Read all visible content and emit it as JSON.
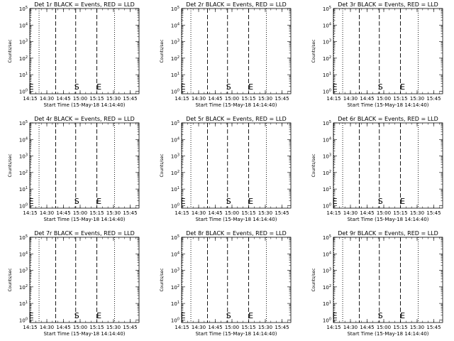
{
  "chart_data": [
    {
      "type": "line",
      "title": "Det 1r BLACK = Events, RED = LLD",
      "xlabel": "Start Time (15-May-18 14:14:40)",
      "ylabel": "Counts/sec",
      "xticks": [
        "14:15",
        "14:30",
        "14:45",
        "15:00",
        "15:15",
        "15:30",
        "15:45"
      ],
      "yticks": [
        "10^0",
        "10^1",
        "10^2",
        "10^3",
        "10^4",
        "10^5"
      ],
      "yscale": "log",
      "ylim": [
        0.7,
        100000
      ],
      "xlim": [
        "14:14:40",
        "15:53:00"
      ],
      "vlines_dotted": [
        "14:15",
        "14:23",
        "15:31"
      ],
      "vlines_dashed": [
        "14:38",
        "14:56",
        "15:15"
      ],
      "markers": [
        {
          "label": "E",
          "x": "14:16"
        },
        {
          "label": "S",
          "x": "14:57"
        },
        {
          "label": "E",
          "x": "15:17"
        }
      ],
      "series": []
    },
    {
      "type": "line",
      "title": "Det 2r BLACK = Events, RED = LLD",
      "xlabel": "Start Time (15-May-18 14:14:40)",
      "ylabel": "Counts/sec",
      "xticks": [
        "14:15",
        "14:30",
        "14:45",
        "15:00",
        "15:15",
        "15:30",
        "15:45"
      ],
      "yticks": [
        "10^0",
        "10^1",
        "10^2",
        "10^3",
        "10^4",
        "10^5"
      ],
      "yscale": "log",
      "ylim": [
        0.7,
        100000
      ],
      "xlim": [
        "14:14:40",
        "15:53:00"
      ],
      "vlines_dotted": [
        "14:15",
        "14:23",
        "15:31"
      ],
      "vlines_dashed": [
        "14:38",
        "14:56",
        "15:15"
      ],
      "markers": [
        {
          "label": "E",
          "x": "14:16"
        },
        {
          "label": "S",
          "x": "14:57"
        },
        {
          "label": "E",
          "x": "15:17"
        }
      ],
      "series": []
    },
    {
      "type": "line",
      "title": "Det 3r BLACK = Events, RED = LLD",
      "xlabel": "Start Time (15-May-18 14:14:40)",
      "ylabel": "Counts/sec",
      "xticks": [
        "14:15",
        "14:30",
        "14:45",
        "15:00",
        "15:15",
        "15:30",
        "15:45"
      ],
      "yticks": [
        "10^0",
        "10^1",
        "10^2",
        "10^3",
        "10^4",
        "10^5"
      ],
      "yscale": "log",
      "ylim": [
        0.7,
        100000
      ],
      "xlim": [
        "14:14:40",
        "15:53:00"
      ],
      "vlines_dotted": [
        "14:15",
        "14:23",
        "15:31"
      ],
      "vlines_dashed": [
        "14:38",
        "14:56",
        "15:15"
      ],
      "markers": [
        {
          "label": "E",
          "x": "14:16"
        },
        {
          "label": "S",
          "x": "14:57"
        },
        {
          "label": "E",
          "x": "15:17"
        }
      ],
      "series": []
    },
    {
      "type": "line",
      "title": "Det 4r BLACK = Events, RED = LLD",
      "xlabel": "Start Time (15-May-18 14:14:40)",
      "ylabel": "Counts/sec",
      "xticks": [
        "14:15",
        "14:30",
        "14:45",
        "15:00",
        "15:15",
        "15:30",
        "15:45"
      ],
      "yticks": [
        "10^0",
        "10^1",
        "10^2",
        "10^3",
        "10^4",
        "10^5"
      ],
      "yscale": "log",
      "ylim": [
        0.7,
        100000
      ],
      "xlim": [
        "14:14:40",
        "15:53:00"
      ],
      "vlines_dotted": [
        "14:15",
        "14:23",
        "15:31"
      ],
      "vlines_dashed": [
        "14:38",
        "14:56",
        "15:15"
      ],
      "markers": [
        {
          "label": "E",
          "x": "14:16"
        },
        {
          "label": "S",
          "x": "14:57"
        },
        {
          "label": "E",
          "x": "15:17"
        }
      ],
      "series": []
    },
    {
      "type": "line",
      "title": "Det 5r BLACK = Events, RED = LLD",
      "xlabel": "Start Time (15-May-18 14:14:40)",
      "ylabel": "Counts/sec",
      "xticks": [
        "14:15",
        "14:30",
        "14:45",
        "15:00",
        "15:15",
        "15:30",
        "15:45"
      ],
      "yticks": [
        "10^0",
        "10^1",
        "10^2",
        "10^3",
        "10^4",
        "10^5"
      ],
      "yscale": "log",
      "ylim": [
        0.7,
        100000
      ],
      "xlim": [
        "14:14:40",
        "15:53:00"
      ],
      "vlines_dotted": [
        "14:15",
        "14:23",
        "15:31"
      ],
      "vlines_dashed": [
        "14:38",
        "14:56",
        "15:15"
      ],
      "markers": [
        {
          "label": "E",
          "x": "14:16"
        },
        {
          "label": "S",
          "x": "14:57"
        },
        {
          "label": "E",
          "x": "15:17"
        }
      ],
      "series": []
    },
    {
      "type": "line",
      "title": "Det 6r BLACK = Events, RED = LLD",
      "xlabel": "Start Time (15-May-18 14:14:40)",
      "ylabel": "Counts/sec",
      "xticks": [
        "14:15",
        "14:30",
        "14:45",
        "15:00",
        "15:15",
        "15:30",
        "15:45"
      ],
      "yticks": [
        "10^0",
        "10^1",
        "10^2",
        "10^3",
        "10^4",
        "10^5"
      ],
      "yscale": "log",
      "ylim": [
        0.7,
        100000
      ],
      "xlim": [
        "14:14:40",
        "15:53:00"
      ],
      "vlines_dotted": [
        "14:15",
        "14:23",
        "15:31"
      ],
      "vlines_dashed": [
        "14:38",
        "14:56",
        "15:15"
      ],
      "markers": [
        {
          "label": "E",
          "x": "14:16"
        },
        {
          "label": "S",
          "x": "14:57"
        },
        {
          "label": "E",
          "x": "15:17"
        }
      ],
      "series": []
    },
    {
      "type": "line",
      "title": "Det 7r BLACK = Events, RED = LLD",
      "xlabel": "Start Time (15-May-18 14:14:40)",
      "ylabel": "Counts/sec",
      "xticks": [
        "14:15",
        "14:30",
        "14:45",
        "15:00",
        "15:15",
        "15:30",
        "15:45"
      ],
      "yticks": [
        "10^0",
        "10^1",
        "10^2",
        "10^3",
        "10^4",
        "10^5"
      ],
      "yscale": "log",
      "ylim": [
        0.7,
        100000
      ],
      "xlim": [
        "14:14:40",
        "15:53:00"
      ],
      "vlines_dotted": [
        "14:15",
        "14:23",
        "15:31"
      ],
      "vlines_dashed": [
        "14:38",
        "14:56",
        "15:15"
      ],
      "markers": [
        {
          "label": "E",
          "x": "14:16"
        },
        {
          "label": "S",
          "x": "14:57"
        },
        {
          "label": "E",
          "x": "15:17"
        }
      ],
      "series": []
    },
    {
      "type": "line",
      "title": "Det 8r BLACK = Events, RED = LLD",
      "xlabel": "Start Time (15-May-18 14:14:40)",
      "ylabel": "Counts/sec",
      "xticks": [
        "14:15",
        "14:30",
        "14:45",
        "15:00",
        "15:15",
        "15:30",
        "15:45"
      ],
      "yticks": [
        "10^0",
        "10^1",
        "10^2",
        "10^3",
        "10^4",
        "10^5"
      ],
      "yscale": "log",
      "ylim": [
        0.7,
        100000
      ],
      "xlim": [
        "14:14:40",
        "15:53:00"
      ],
      "vlines_dotted": [
        "14:15",
        "14:23",
        "15:31"
      ],
      "vlines_dashed": [
        "14:38",
        "14:56",
        "15:15"
      ],
      "markers": [
        {
          "label": "E",
          "x": "14:16"
        },
        {
          "label": "S",
          "x": "14:57"
        },
        {
          "label": "E",
          "x": "15:17"
        }
      ],
      "series": []
    },
    {
      "type": "line",
      "title": "Det 9r BLACK = Events, RED = LLD",
      "xlabel": "Start Time (15-May-18 14:14:40)",
      "ylabel": "Counts/sec",
      "xticks": [
        "14:15",
        "14:30",
        "14:45",
        "15:00",
        "15:15",
        "15:30",
        "15:45"
      ],
      "yticks": [
        "10^0",
        "10^1",
        "10^2",
        "10^3",
        "10^4",
        "10^5"
      ],
      "yscale": "log",
      "ylim": [
        0.7,
        100000
      ],
      "xlim": [
        "14:14:40",
        "15:53:00"
      ],
      "vlines_dotted": [
        "14:15",
        "14:23",
        "15:31"
      ],
      "vlines_dashed": [
        "14:38",
        "14:56",
        "15:15"
      ],
      "markers": [
        {
          "label": "E",
          "x": "14:16"
        },
        {
          "label": "S",
          "x": "14:57"
        },
        {
          "label": "E",
          "x": "15:17"
        }
      ],
      "series": []
    }
  ]
}
